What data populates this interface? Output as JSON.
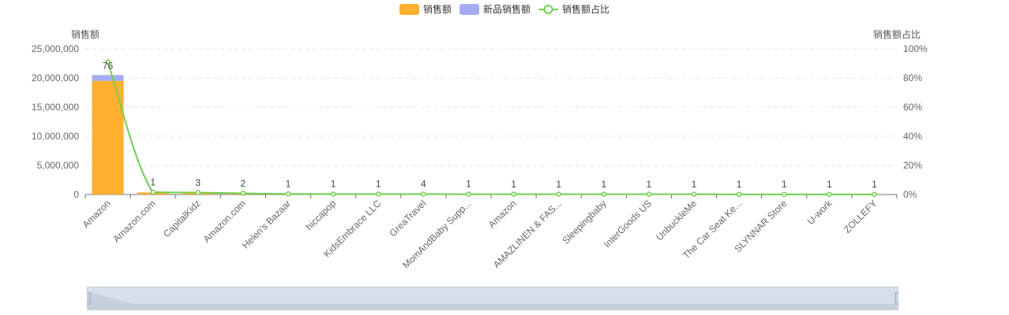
{
  "legend": [
    {
      "label": "销售额",
      "color": "#ffb02e",
      "kind": "bar"
    },
    {
      "label": "新品销售额",
      "color": "#a5acf1",
      "kind": "bar"
    },
    {
      "label": "销售额占比",
      "color": "#6fcf4f",
      "kind": "line"
    }
  ],
  "chart_data": {
    "type": "bar",
    "ylabel": "销售额",
    "y2label": "销售额占比",
    "ylim": [
      0,
      25000000
    ],
    "y2lim": [
      0,
      100
    ],
    "yticks": [
      "0",
      "5,000,000",
      "10,000,000",
      "15,000,000",
      "20,000,000",
      "25,000,000"
    ],
    "y2ticks": [
      "0%",
      "20%",
      "40%",
      "60%",
      "80%",
      "100%"
    ],
    "grid": true,
    "categories": [
      "Amazon",
      "Amazon.com",
      "CapitalKidz",
      "Amazon.com",
      "Helen’s Bazaar",
      "hiccapop",
      "KidsEmbrace LLC",
      "GreaTravel",
      "MomAndBaby Supp...",
      "Amazon",
      "AMAZLINEN & FAS...",
      "Sleepingbaby",
      "InterGoods US",
      "UnbuckleMe",
      "The Car Seat Ke...",
      "SLYNNAR Store",
      "U-work",
      "ZOLLEFY"
    ],
    "series": [
      {
        "name": "销售额",
        "type": "bar",
        "color": "#ffb02e",
        "values": [
          19500000,
          350000,
          250000,
          150000,
          60000,
          50000,
          45000,
          40000,
          35000,
          30000,
          28000,
          25000,
          22000,
          20000,
          18000,
          15000,
          12000,
          10000
        ]
      },
      {
        "name": "新品销售额",
        "type": "bar",
        "color": "#a5acf1",
        "values": [
          1000000,
          0,
          0,
          0,
          0,
          0,
          0,
          0,
          0,
          0,
          0,
          0,
          0,
          0,
          0,
          0,
          0,
          0
        ]
      },
      {
        "name": "销售额占比",
        "type": "line",
        "color": "#6fcf4f",
        "values": [
          91,
          1.6,
          1.3,
          0.8,
          0.4,
          0.3,
          0.3,
          0.3,
          0.2,
          0.2,
          0.2,
          0.2,
          0.2,
          0.2,
          0.1,
          0.1,
          0.1,
          0.1
        ]
      }
    ],
    "data_labels": [
      "76",
      "1",
      "3",
      "2",
      "1",
      "1",
      "1",
      "4",
      "1",
      "1",
      "1",
      "1",
      "1",
      "1",
      "1",
      "1",
      "1",
      "1"
    ]
  }
}
